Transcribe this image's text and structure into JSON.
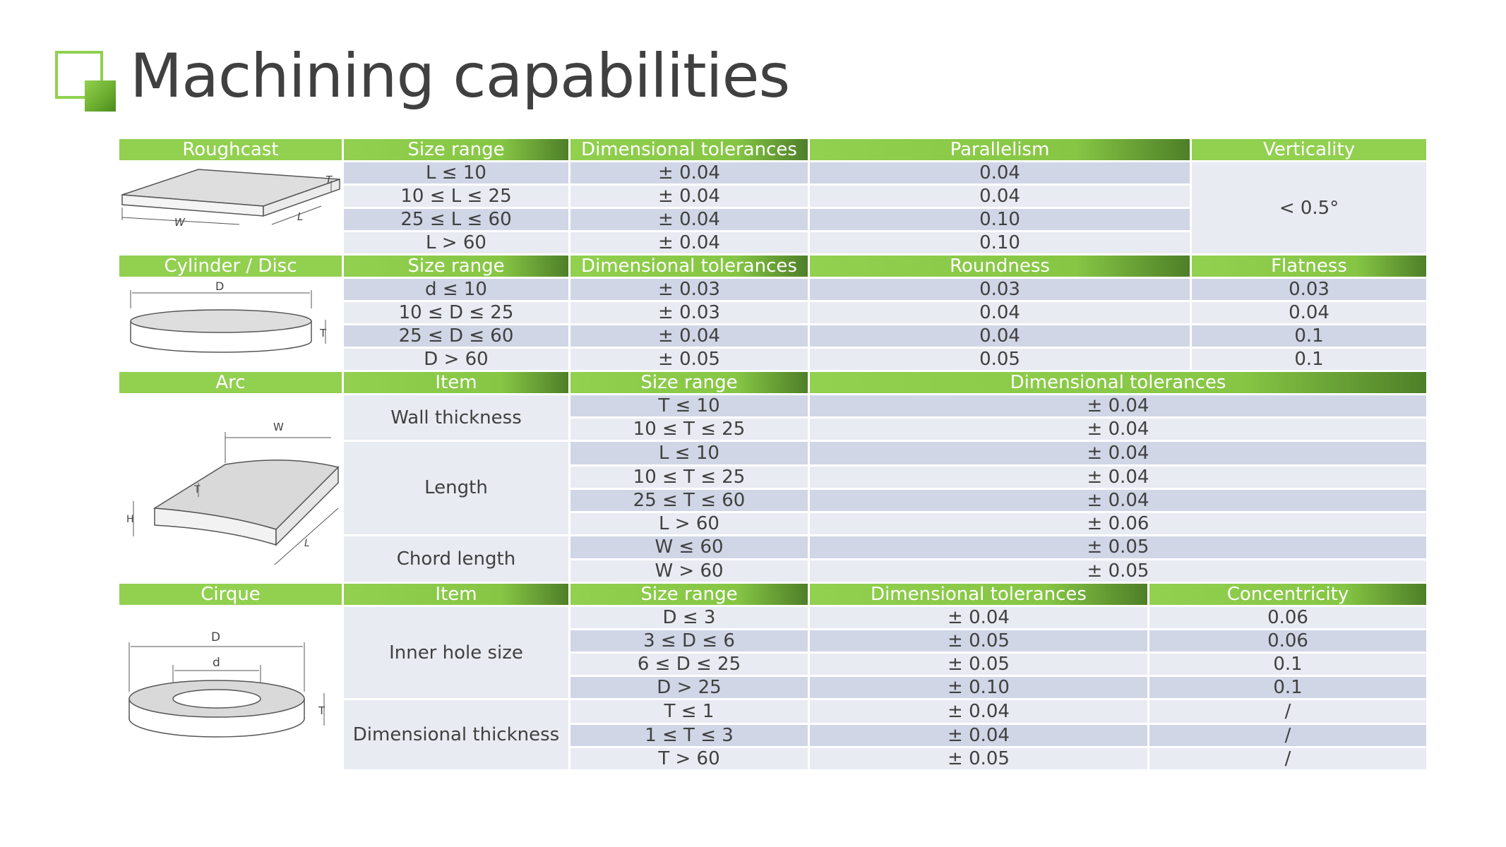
{
  "title": "Machining capabilities",
  "colors": {
    "accent_green": "#92d050",
    "dark_green": "#4e7f28",
    "row_dark": "#d0d6e6",
    "row_light": "#e8ebf2",
    "text": "#404040"
  },
  "roughcast": {
    "headers": [
      "Roughcast",
      "Size range",
      "Dimensional tolerances",
      "Parallelism",
      "Verticality"
    ],
    "rows": [
      {
        "size": "L ≤ 10",
        "tol": "± 0.04",
        "par": "0.04"
      },
      {
        "size": "10 ≤ L ≤ 25",
        "tol": "± 0.04",
        "par": "0.04"
      },
      {
        "size": "25 ≤ L ≤ 60",
        "tol": "± 0.04",
        "par": "0.10"
      },
      {
        "size": "L > 60",
        "tol": "± 0.04",
        "par": "0.10"
      }
    ],
    "verticality": "< 0.5°"
  },
  "cylinder": {
    "headers": [
      "Cylinder / Disc",
      "Size range",
      "Dimensional tolerances",
      "Roundness",
      "Flatness"
    ],
    "rows": [
      {
        "size": "d ≤ 10",
        "tol": "± 0.03",
        "round": "0.03",
        "flat": "0.03"
      },
      {
        "size": "10 ≤ D ≤ 25",
        "tol": "± 0.03",
        "round": "0.04",
        "flat": "0.04"
      },
      {
        "size": "25 ≤ D ≤ 60",
        "tol": "± 0.04",
        "round": "0.04",
        "flat": "0.1"
      },
      {
        "size": "D > 60",
        "tol": "± 0.05",
        "round": "0.05",
        "flat": "0.1"
      }
    ]
  },
  "arc": {
    "headers": [
      "Arc",
      "Item",
      "Size range",
      "Dimensional tolerances"
    ],
    "items": [
      "Wall thickness",
      "Length",
      "Chord length"
    ],
    "rows": [
      {
        "size": "T ≤ 10",
        "tol": "± 0.04"
      },
      {
        "size": "10 ≤ T ≤ 25",
        "tol": "± 0.04"
      },
      {
        "size": "L ≤ 10",
        "tol": "± 0.04"
      },
      {
        "size": "10 ≤ T ≤ 25",
        "tol": "± 0.04"
      },
      {
        "size": "25 ≤ T ≤ 60",
        "tol": "± 0.04"
      },
      {
        "size": "L > 60",
        "tol": "± 0.06"
      },
      {
        "size": "W ≤ 60",
        "tol": "± 0.05"
      },
      {
        "size": "W > 60",
        "tol": "± 0.05"
      }
    ]
  },
  "cirque": {
    "headers": [
      "Cirque",
      "Item",
      "Size range",
      "Dimensional tolerances",
      "Concentricity"
    ],
    "items": [
      "Inner hole size",
      "Dimensional thickness"
    ],
    "rows": [
      {
        "size": "D ≤ 3",
        "tol": "± 0.04",
        "conc": "0.06"
      },
      {
        "size": "3 ≤ D ≤ 6",
        "tol": "± 0.05",
        "conc": "0.06"
      },
      {
        "size": "6 ≤ D ≤ 25",
        "tol": "± 0.05",
        "conc": "0.1"
      },
      {
        "size": "D > 25",
        "tol": "± 0.10",
        "conc": "0.1"
      },
      {
        "size": "T ≤ 1",
        "tol": "± 0.04",
        "conc": "/"
      },
      {
        "size": "1 ≤ T ≤ 3",
        "tol": "± 0.04",
        "conc": "/"
      },
      {
        "size": "T > 60",
        "tol": "± 0.05",
        "conc": "/"
      }
    ]
  },
  "diagram_letters": {
    "roughcast": [
      "T",
      "W",
      "L"
    ],
    "cylinder": [
      "D",
      "T"
    ],
    "arc": [
      "W",
      "T",
      "H",
      "L"
    ],
    "cirque": [
      "D",
      "d",
      "T"
    ]
  }
}
